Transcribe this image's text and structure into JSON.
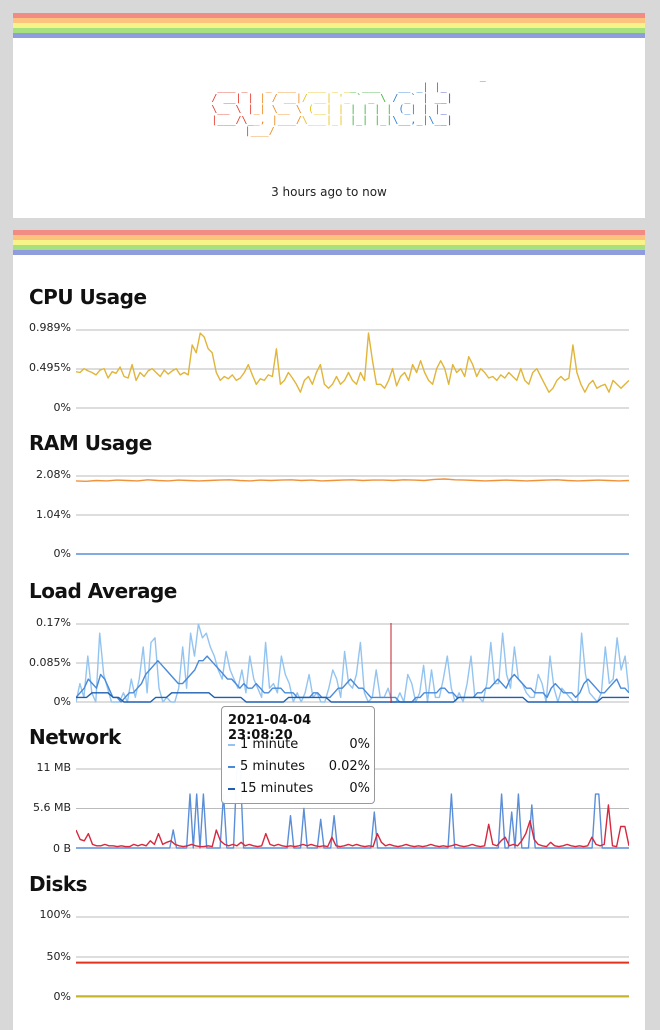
{
  "header": {
    "logo_lines": [
      "                                                    _ ",
      "  ___ _   _ ___  ___ _ __ ___   __ _| |_ ",
      " / __| | | / __|/ __| '_ ` _ \\ / _` | __|",
      " \\__ \\ |_| \\__ \\ (__| | | | | | (_| | |_ ",
      " |___/\\__, |___/\\___|_| |_| |_|\\__,_|\\__|",
      "       |___/                              "
    ],
    "range_text": "3 hours ago to now"
  },
  "colors": {
    "rainbow": [
      "#f28b84",
      "#fbc37d",
      "#f7f388",
      "#a6e07f",
      "#8f9ddf"
    ],
    "cpu": "#e0b53a",
    "ram_used": "#f0923a",
    "ram_base": "#5b8ed8",
    "load_1": "#93c4f0",
    "load_5": "#4a8ad8",
    "load_15": "#1f5fb0",
    "net_rx": "#5b8ed8",
    "net_tx": "#d6283f",
    "disk_1": "#e0321f",
    "disk_2": "#c4b42a",
    "cursor": "#c0202a"
  },
  "charts": {
    "cpu": {
      "title": "CPU Usage",
      "ticks": [
        "0.989%",
        "0.495%",
        "0%"
      ]
    },
    "ram": {
      "title": "RAM Usage",
      "ticks": [
        "2.08%",
        "1.04%",
        "0%"
      ]
    },
    "load": {
      "title": "Load Average",
      "ticks": [
        "0.17%",
        "0.085%",
        "0%"
      ]
    },
    "network": {
      "title": "Network",
      "ticks": [
        "11 MB",
        "5.6 MB",
        "0 B"
      ]
    },
    "disks": {
      "title": "Disks",
      "ticks": [
        "100%",
        "50%",
        "0%"
      ]
    }
  },
  "tooltip": {
    "title": "2021-04-04 23:08:20",
    "rows": [
      {
        "name": "1 minute",
        "value": "0%"
      },
      {
        "name": "5 minutes",
        "value": "0.02%"
      },
      {
        "name": "15 minutes",
        "value": "0%"
      }
    ]
  },
  "chart_data": [
    {
      "type": "line",
      "title": "CPU Usage",
      "ylim": [
        0,
        0.989
      ],
      "series": [
        {
          "values": [
            0.46,
            0.45,
            0.5,
            0.47,
            0.45,
            0.42,
            0.48,
            0.5,
            0.38,
            0.46,
            0.44,
            0.52,
            0.4,
            0.38,
            0.55,
            0.35,
            0.45,
            0.4,
            0.47,
            0.5,
            0.45,
            0.4,
            0.48,
            0.43,
            0.47,
            0.5,
            0.42,
            0.45,
            0.42,
            0.8,
            0.7,
            0.95,
            0.9,
            0.75,
            0.7,
            0.45,
            0.35,
            0.4,
            0.37,
            0.42,
            0.35,
            0.38,
            0.45,
            0.55,
            0.42,
            0.3,
            0.37,
            0.35,
            0.42,
            0.4,
            0.75,
            0.3,
            0.35,
            0.45,
            0.38,
            0.3,
            0.2,
            0.35,
            0.4,
            0.3,
            0.45,
            0.55,
            0.3,
            0.25,
            0.3,
            0.4,
            0.3,
            0.35,
            0.45,
            0.35,
            0.3,
            0.45,
            0.35,
            0.95,
            0.6,
            0.3,
            0.3,
            0.25,
            0.35,
            0.5,
            0.28,
            0.4,
            0.45,
            0.35,
            0.55,
            0.45,
            0.6,
            0.45,
            0.35,
            0.3,
            0.5,
            0.6,
            0.5,
            0.3,
            0.55,
            0.45,
            0.5,
            0.4,
            0.65,
            0.55,
            0.4,
            0.5,
            0.45,
            0.38,
            0.4,
            0.35,
            0.42,
            0.38,
            0.45,
            0.4,
            0.35,
            0.5,
            0.35,
            0.3,
            0.45,
            0.5,
            0.4,
            0.3,
            0.2,
            0.25,
            0.35,
            0.4,
            0.35,
            0.38,
            0.8,
            0.45,
            0.3,
            0.2,
            0.3,
            0.35,
            0.25,
            0.28,
            0.3,
            0.2,
            0.35,
            0.3,
            0.25,
            0.3,
            0.35
          ]
        }
      ]
    },
    {
      "type": "line",
      "title": "RAM Usage",
      "ylim": [
        0,
        2.08
      ],
      "series": [
        {
          "values": [
            1.95,
            1.94,
            1.96,
            1.95,
            1.97,
            1.96,
            1.95,
            1.98,
            1.96,
            1.95,
            1.97,
            1.96,
            1.95,
            1.96,
            1.97,
            1.98,
            1.96,
            1.95,
            1.97,
            1.96,
            1.97,
            1.98,
            1.96,
            1.97,
            1.95,
            1.96,
            1.97,
            1.98,
            1.96,
            1.97,
            1.97,
            1.96,
            1.98,
            1.97,
            1.96,
            1.99,
            2.0,
            1.98,
            1.97,
            1.96,
            1.95,
            1.96,
            1.97,
            1.96,
            1.95,
            1.96,
            1.97,
            1.98,
            1.96,
            1.95,
            1.96,
            1.97,
            1.96,
            1.95,
            1.96
          ]
        },
        {
          "values": [
            0,
            0,
            0,
            0,
            0,
            0,
            0,
            0,
            0,
            0
          ]
        }
      ]
    },
    {
      "type": "line",
      "title": "Load Average",
      "ylim": [
        0,
        0.17
      ],
      "series": [
        {
          "values": [
            0,
            0.04,
            0.01,
            0.1,
            0.02,
            0,
            0.15,
            0.06,
            0.03,
            0,
            0,
            0,
            0.02,
            0,
            0.05,
            0.01,
            0.05,
            0.12,
            0.02,
            0.13,
            0.14,
            0.03,
            0,
            0.01,
            0,
            0,
            0.03,
            0.12,
            0.03,
            0.15,
            0.1,
            0.17,
            0.14,
            0.15,
            0.12,
            0.1,
            0.07,
            0.05,
            0.11,
            0.07,
            0.05,
            0.03,
            0.07,
            0.02,
            0.1,
            0.05,
            0.03,
            0.01,
            0.13,
            0.03,
            0.04,
            0.02,
            0.1,
            0.06,
            0.04,
            0,
            0.02,
            0,
            0.02,
            0.06,
            0.01,
            0.02,
            0,
            0,
            0.03,
            0.07,
            0.05,
            0.01,
            0.11,
            0.04,
            0.03,
            0.06,
            0.13,
            0.02,
            0,
            0.01,
            0.07,
            0.01,
            0.01,
            0.03,
            0,
            0,
            0.02,
            0,
            0.06,
            0.04,
            0,
            0.02,
            0.08,
            0,
            0.07,
            0.01,
            0.01,
            0.05,
            0.1,
            0.03,
            0,
            0.02,
            0,
            0.04,
            0.1,
            0.01,
            0.01,
            0,
            0.04,
            0.13,
            0.04,
            0.04,
            0.15,
            0.06,
            0.03,
            0.12,
            0.05,
            0.04,
            0.02,
            0.01,
            0.01,
            0.06,
            0.04,
            0,
            0.1,
            0.03,
            0,
            0.03,
            0.02,
            0.01,
            0,
            0,
            0.15,
            0.06,
            0.02,
            0.01,
            0,
            0.02,
            0.12,
            0.04,
            0.05,
            0.14,
            0.07,
            0.1,
            0.02
          ]
        },
        {
          "values": [
            0.01,
            0.02,
            0.03,
            0.05,
            0.04,
            0.03,
            0.06,
            0.05,
            0.03,
            0.01,
            0.01,
            0,
            0.01,
            0.02,
            0.02,
            0.03,
            0.04,
            0.06,
            0.07,
            0.08,
            0.09,
            0.08,
            0.07,
            0.06,
            0.05,
            0.04,
            0.04,
            0.05,
            0.06,
            0.07,
            0.09,
            0.09,
            0.1,
            0.09,
            0.08,
            0.07,
            0.06,
            0.05,
            0.05,
            0.04,
            0.03,
            0.04,
            0.03,
            0.03,
            0.04,
            0.03,
            0.02,
            0.02,
            0.03,
            0.03,
            0.03,
            0.02,
            0.02,
            0.02,
            0.01,
            0.01,
            0.01,
            0.01,
            0.02,
            0.02,
            0.01,
            0.01,
            0.01,
            0.02,
            0.03,
            0.03,
            0.04,
            0.05,
            0.04,
            0.03,
            0.03,
            0.02,
            0.01,
            0.01,
            0.01,
            0.01,
            0.01,
            0.01,
            0.01,
            0,
            0,
            0,
            0,
            0.01,
            0.01,
            0.02,
            0.02,
            0.02,
            0.02,
            0.03,
            0.03,
            0.02,
            0.02,
            0.01,
            0.01,
            0.01,
            0.01,
            0.01,
            0.02,
            0.02,
            0.03,
            0.03,
            0.04,
            0.05,
            0.04,
            0.03,
            0.05,
            0.06,
            0.05,
            0.04,
            0.03,
            0.03,
            0.02,
            0.02,
            0.02,
            0.01,
            0.03,
            0.04,
            0.03,
            0.02,
            0.02,
            0.02,
            0.01,
            0.02,
            0.04,
            0.05,
            0.04,
            0.03,
            0.02,
            0.02,
            0.03,
            0.04,
            0.05,
            0.03,
            0.03,
            0.02
          ]
        },
        {
          "values": [
            0.01,
            0.01,
            0.01,
            0.02,
            0.02,
            0.02,
            0.02,
            0.01,
            0.01,
            0,
            0,
            0,
            0,
            0,
            0,
            0.01,
            0.01,
            0.01,
            0.02,
            0.02,
            0.02,
            0.02,
            0.02,
            0.02,
            0.02,
            0.02,
            0.01,
            0.01,
            0.01,
            0.01,
            0.01,
            0.01,
            0,
            0,
            0,
            0,
            0,
            0,
            0,
            0,
            0.01,
            0.01,
            0.01,
            0.01,
            0.01,
            0.01,
            0.01,
            0.01,
            0,
            0,
            0,
            0,
            0,
            0,
            0,
            0,
            0,
            0,
            0,
            0,
            0,
            0,
            0,
            0,
            0,
            0,
            0,
            0,
            0,
            0,
            0,
            0,
            0.01,
            0.01,
            0.01,
            0.01,
            0.01,
            0.01,
            0.01,
            0.01,
            0.01,
            0.01,
            0.01,
            0.01,
            0.01,
            0,
            0,
            0,
            0,
            0,
            0,
            0,
            0,
            0,
            0,
            0,
            0,
            0,
            0,
            0.01,
            0.01,
            0.01,
            0.01,
            0.01,
            0.01
          ]
        }
      ]
    },
    {
      "type": "line",
      "title": "Network",
      "ylim": [
        0,
        11
      ],
      "series": [
        {
          "values": [
            0,
            0,
            0,
            0,
            0,
            0,
            0,
            0,
            0,
            0,
            0,
            0,
            0,
            0,
            0,
            0,
            0,
            0,
            0,
            0,
            0,
            0,
            0,
            0,
            0,
            0,
            0,
            0,
            0,
            2.5,
            0,
            0,
            0,
            0,
            7.5,
            0,
            7.5,
            0,
            7.5,
            0,
            0,
            0,
            0,
            0,
            7.5,
            0,
            0,
            0,
            11,
            11,
            0,
            0,
            0,
            0,
            0,
            0,
            0,
            0,
            0,
            0,
            0,
            0,
            0,
            0,
            4.5,
            0,
            0,
            0,
            5.5,
            0,
            0,
            0,
            0,
            4,
            0,
            0,
            0,
            4.5,
            0,
            0,
            0,
            0,
            0,
            0,
            0,
            0,
            0,
            0,
            0,
            5,
            0,
            0,
            0,
            0,
            0,
            0,
            0,
            0,
            0,
            0,
            0,
            0,
            0,
            0,
            0,
            0,
            0,
            0,
            0,
            0,
            0,
            0,
            7.5,
            0,
            0,
            0,
            0,
            0,
            0,
            0,
            0,
            0,
            0,
            0,
            0,
            0,
            0,
            7.5,
            0,
            0,
            5,
            0,
            7.5,
            0,
            0,
            0,
            6,
            0,
            0,
            0,
            0,
            0,
            0,
            0,
            0,
            0,
            0,
            0,
            0,
            0,
            0,
            0,
            0,
            0,
            0,
            7.5,
            7.5,
            0,
            0,
            0,
            0,
            0,
            0,
            0,
            0,
            0
          ]
        },
        {
          "values": [
            2.5,
            1.2,
            1,
            2,
            0.5,
            0.3,
            0.3,
            0.5,
            0.3,
            0.3,
            0.2,
            0.3,
            0.2,
            0.2,
            0.5,
            0.3,
            0.5,
            0.3,
            1,
            0.5,
            2,
            0.5,
            0.8,
            1,
            0.5,
            0.3,
            0.2,
            0.3,
            0.5,
            0.3,
            0.2,
            0.2,
            0.3,
            0.2,
            2.5,
            1,
            0.5,
            0.3,
            0.5,
            0.3,
            0.8,
            0.3,
            0.5,
            0.3,
            0.2,
            0.3,
            2,
            0.5,
            0.3,
            0.5,
            0.3,
            0.2,
            0.3,
            0.2,
            0.3,
            0.5,
            0.3,
            0.5,
            0.3,
            0.2,
            0.3,
            0.2,
            1.5,
            0.3,
            0.2,
            0.3,
            0.5,
            0.3,
            0.5,
            0.3,
            0.2,
            0.3,
            0.2,
            2,
            0.8,
            0.3,
            0.5,
            0.3,
            0.2,
            0.3,
            0.5,
            0.3,
            0.2,
            0.3,
            0.2,
            0.3,
            0.5,
            0.3,
            0.2,
            0.3,
            0.2,
            0.3,
            0.5,
            0.3,
            0.2,
            0.3,
            0.5,
            0.3,
            0.2,
            0.3,
            3.3,
            0.5,
            0.3,
            1,
            1.5,
            0.3,
            0.5,
            0.3,
            1,
            2,
            3.8,
            1.2,
            0.5,
            0.3,
            0.2,
            0.8,
            0.3,
            0.2,
            0.3,
            0.5,
            0.3,
            0.2,
            0.3,
            0.2,
            0.3,
            1.5,
            0.5,
            0.3,
            0.5,
            6,
            0.3,
            0.2,
            3,
            3,
            0.3
          ]
        }
      ]
    },
    {
      "type": "line",
      "title": "Disks",
      "ylim": [
        0,
        100
      ],
      "series": [
        {
          "values": [
            43,
            43,
            43,
            43,
            43,
            43,
            43,
            43,
            43,
            43
          ]
        },
        {
          "values": [
            1,
            1,
            1,
            1,
            1,
            1,
            1,
            1,
            1,
            1
          ]
        }
      ]
    }
  ]
}
